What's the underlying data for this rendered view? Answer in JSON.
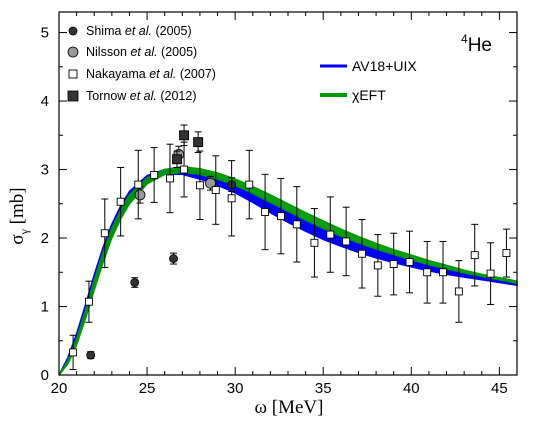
{
  "chart_data": {
    "type": "scatter",
    "panel_label": {
      "sup": "4",
      "text": "He"
    },
    "xlabel": {
      "symbol": "ω",
      "unit": "[MeV]"
    },
    "ylabel": {
      "symbol": "σ",
      "sub": "γ",
      "unit": "[mb]"
    },
    "xlim": [
      20,
      46
    ],
    "ylim": [
      0,
      5.3
    ],
    "x_ticks": [
      20,
      25,
      30,
      35,
      40,
      45
    ],
    "y_ticks": [
      0,
      1,
      2,
      3,
      4,
      5
    ],
    "bands": [
      {
        "name": "AV18+UIX",
        "color": "#0000ff",
        "x": [
          20,
          20.5,
          21,
          21.5,
          22,
          22.5,
          23,
          23.5,
          24,
          25,
          26,
          27,
          28,
          29,
          30,
          31,
          32,
          33,
          34,
          35,
          36,
          37,
          38,
          39,
          40,
          41,
          42,
          43,
          44,
          45,
          46
        ],
        "lower": [
          0,
          0.18,
          0.48,
          0.86,
          1.28,
          1.68,
          2.03,
          2.3,
          2.52,
          2.8,
          2.93,
          2.93,
          2.86,
          2.77,
          2.66,
          2.52,
          2.37,
          2.23,
          2.1,
          1.98,
          1.88,
          1.79,
          1.71,
          1.64,
          1.58,
          1.52,
          1.47,
          1.43,
          1.39,
          1.35,
          1.31
        ],
        "upper": [
          0,
          0.25,
          0.6,
          1.02,
          1.46,
          1.86,
          2.2,
          2.47,
          2.68,
          2.91,
          3.0,
          3.01,
          2.96,
          2.88,
          2.77,
          2.64,
          2.5,
          2.37,
          2.24,
          2.12,
          2.01,
          1.91,
          1.82,
          1.74,
          1.67,
          1.6,
          1.54,
          1.48,
          1.43,
          1.38,
          1.33
        ]
      },
      {
        "name": "χEFT",
        "color": "#009900",
        "x": [
          20,
          20.5,
          21,
          21.5,
          22,
          22.5,
          23,
          23.5,
          24,
          25,
          26,
          27,
          28,
          29,
          30,
          31,
          32,
          33,
          34,
          35,
          36,
          37,
          38,
          39,
          40,
          41,
          42,
          43,
          44,
          45,
          46
        ],
        "lower": [
          0,
          0.16,
          0.44,
          0.82,
          1.24,
          1.64,
          2.0,
          2.28,
          2.5,
          2.79,
          2.93,
          2.96,
          2.93,
          2.86,
          2.77,
          2.65,
          2.52,
          2.39,
          2.26,
          2.14,
          2.03,
          1.93,
          1.84,
          1.76,
          1.68,
          1.61,
          1.55,
          1.49,
          1.44,
          1.39,
          1.34
        ],
        "upper": [
          0,
          0.21,
          0.53,
          0.94,
          1.38,
          1.79,
          2.14,
          2.41,
          2.63,
          2.88,
          3.0,
          3.04,
          3.01,
          2.95,
          2.86,
          2.75,
          2.63,
          2.5,
          2.37,
          2.25,
          2.13,
          2.02,
          1.92,
          1.83,
          1.75,
          1.67,
          1.6,
          1.53,
          1.47,
          1.42,
          1.37
        ]
      }
    ],
    "series": [
      {
        "name": "Shima et al. (2005)",
        "marker": "circle",
        "fill": "#333333",
        "x": [
          21.8,
          24.3,
          26.5,
          29.8
        ],
        "y": [
          0.29,
          1.35,
          1.7,
          2.78
        ],
        "err": [
          0.05,
          0.07,
          0.08,
          0.1
        ]
      },
      {
        "name": "Nilsson et al. (2005)",
        "marker": "circle",
        "fill": "#999999",
        "x": [
          24.6,
          26.8,
          28.6
        ],
        "y": [
          2.63,
          3.22,
          2.8
        ],
        "err": [
          0.12,
          0.12,
          0.1
        ]
      },
      {
        "name": "Nakayama et al. (2007)",
        "marker": "square",
        "fill": "#ffffff",
        "x": [
          20.8,
          21.7,
          22.6,
          23.5,
          24.5,
          25.4,
          26.3,
          27.1,
          28,
          28.9,
          29.8,
          30.8,
          31.7,
          32.6,
          33.5,
          34.5,
          35.4,
          36.3,
          37.2,
          38.1,
          39,
          39.9,
          40.9,
          41.8,
          42.7,
          43.6,
          44.5,
          45.4
        ],
        "y": [
          0.33,
          1.07,
          2.07,
          2.53,
          2.78,
          2.92,
          2.87,
          3.0,
          2.77,
          2.7,
          2.58,
          2.78,
          2.38,
          2.32,
          2.2,
          1.93,
          2.05,
          1.95,
          1.77,
          1.6,
          1.62,
          1.65,
          1.5,
          1.5,
          1.22,
          1.75,
          1.48,
          1.78
        ],
        "err": [
          0.25,
          0.3,
          0.5,
          0.5,
          0.5,
          0.4,
          0.5,
          0.4,
          0.5,
          0.5,
          0.55,
          0.5,
          0.55,
          0.55,
          0.55,
          0.5,
          0.55,
          0.5,
          0.5,
          0.45,
          0.45,
          0.45,
          0.45,
          0.45,
          0.45,
          0.45,
          0.45,
          0.35
        ]
      },
      {
        "name": "Tornow et al. (2012)",
        "marker": "square",
        "fill": "#333333",
        "x": [
          27.1,
          27.9,
          26.7
        ],
        "y": [
          3.5,
          3.4,
          3.15
        ],
        "err": [
          0.15,
          0.15,
          0.12
        ]
      }
    ],
    "legend_markers": [
      {
        "pre": "Shima ",
        "em": "et al.",
        "post": " (2005)"
      },
      {
        "pre": "Nilsson ",
        "em": "et al.",
        "post": " (2005)"
      },
      {
        "pre": "Nakayama ",
        "em": "et al.",
        "post": " (2007)"
      },
      {
        "pre": "Tornow ",
        "em": "et al.",
        "post": " (2012)"
      }
    ],
    "legend_lines": [
      "AV18+UIX",
      "χEFT"
    ]
  }
}
